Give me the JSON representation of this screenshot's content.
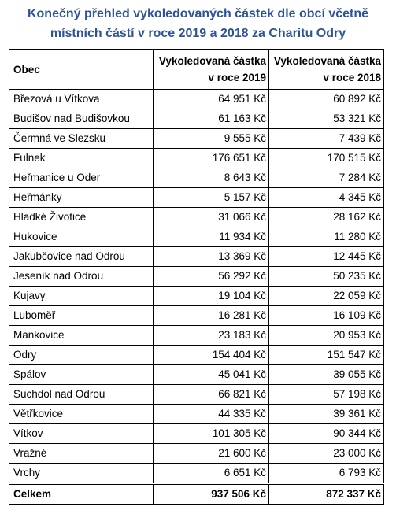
{
  "title": {
    "line1": "Konečný přehled vykoledovaných částek dle obcí včetně",
    "line2": "místních částí v roce 2019 a 2018 za Charitu Odry"
  },
  "table": {
    "headers": {
      "obec": "Obec",
      "col2019_line1": "Vykoledovaná částka",
      "col2019_line2": "v roce 2019",
      "col2018_line1": "Vykoledovaná částka",
      "col2018_line2": "v roce 2018"
    },
    "rows": [
      {
        "obec": "Březová u Vítkova",
        "y2019": "64 951 Kč",
        "y2018": "60 892 Kč"
      },
      {
        "obec": "Budišov nad Budišovkou",
        "y2019": "61 163 Kč",
        "y2018": "53 321 Kč"
      },
      {
        "obec": "Čermná ve Slezsku",
        "y2019": "9 555 Kč",
        "y2018": "7 439 Kč"
      },
      {
        "obec": "Fulnek",
        "y2019": "176 651 Kč",
        "y2018": "170 515 Kč"
      },
      {
        "obec": "Heřmanice u Oder",
        "y2019": "8 643 Kč",
        "y2018": "7 284 Kč"
      },
      {
        "obec": "Heřmánky",
        "y2019": "5 157 Kč",
        "y2018": "4 345 Kč"
      },
      {
        "obec": "Hladké Životice",
        "y2019": "31 066 Kč",
        "y2018": "28 162 Kč"
      },
      {
        "obec": "Hukovice",
        "y2019": "11 934 Kč",
        "y2018": "11 280 Kč"
      },
      {
        "obec": "Jakubčovice nad Odrou",
        "y2019": "13 369 Kč",
        "y2018": "12 445 Kč"
      },
      {
        "obec": "Jeseník nad Odrou",
        "y2019": "56 292 Kč",
        "y2018": "50 235 Kč"
      },
      {
        "obec": "Kujavy",
        "y2019": "19 104 Kč",
        "y2018": "22 059 Kč"
      },
      {
        "obec": "Luboměř",
        "y2019": "16 281 Kč",
        "y2018": "16 109 Kč"
      },
      {
        "obec": "Mankovice",
        "y2019": "23 183 Kč",
        "y2018": "20 953 Kč"
      },
      {
        "obec": "Odry",
        "y2019": "154 404 Kč",
        "y2018": "151 547 Kč"
      },
      {
        "obec": "Spálov",
        "y2019": "45 041 Kč",
        "y2018": "39 055 Kč"
      },
      {
        "obec": "Suchdol nad Odrou",
        "y2019": "66 821 Kč",
        "y2018": "57 198 Kč"
      },
      {
        "obec": "Větřkovice",
        "y2019": "44 335 Kč",
        "y2018": "39 361 Kč"
      },
      {
        "obec": "Vítkov",
        "y2019": "101 305 Kč",
        "y2018": "90 344 Kč"
      },
      {
        "obec": "Vražné",
        "y2019": "21 600 Kč",
        "y2018": "23 000 Kč"
      },
      {
        "obec": "Vrchy",
        "y2019": "6 651 Kč",
        "y2018": "6 793 Kč"
      }
    ],
    "total": {
      "label": "Celkem",
      "y2019": "937 506 Kč",
      "y2018": "872 337 Kč"
    }
  },
  "colors": {
    "title": "#2f5496"
  }
}
